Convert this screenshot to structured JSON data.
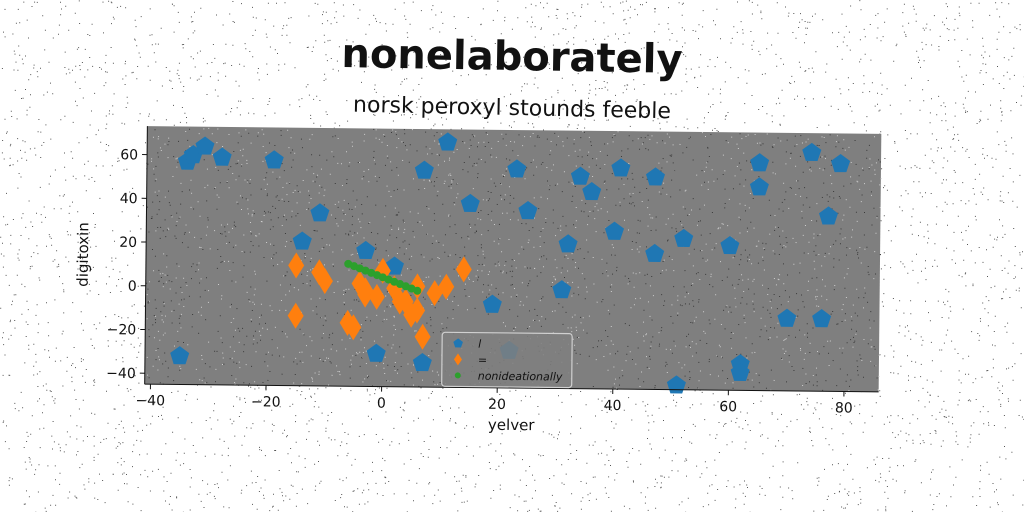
{
  "chart_data": {
    "type": "scatter",
    "title": "nonelaborately",
    "subtitle": "norsk peroxyl stounds feeble",
    "xlabel": "yelver",
    "ylabel": "digitoxin",
    "xlim": [
      -41,
      86
    ],
    "ylim": [
      -45,
      73
    ],
    "xticks": [
      -40,
      -20,
      0,
      20,
      40,
      60,
      80
    ],
    "yticks": [
      -40,
      -20,
      0,
      20,
      40,
      60
    ],
    "grid": false,
    "legend_position": "lower-center",
    "series": [
      {
        "name": "l",
        "marker": "pentagon",
        "color": "#1f77b4",
        "x": [
          -34,
          -33,
          -31,
          -28,
          -19,
          -11,
          -14,
          -3,
          2,
          -35,
          -1,
          7,
          7,
          11,
          15,
          23,
          25,
          19,
          22,
          31,
          32,
          34,
          36,
          41,
          40,
          47,
          47,
          52,
          51,
          60,
          65,
          65,
          74,
          77,
          79,
          70,
          76,
          62,
          62
        ],
        "y": [
          57,
          60,
          64,
          59,
          58,
          34,
          21,
          17,
          10,
          -32,
          -30,
          -34,
          54,
          67,
          39,
          55,
          36,
          -7,
          -28,
          0,
          21,
          52,
          45,
          56,
          27,
          52,
          17,
          24,
          -43,
          21,
          59,
          48,
          64,
          35,
          59,
          -12,
          -12,
          -33,
          -37
        ]
      },
      {
        "name": "=",
        "marker": "diamond",
        "color": "#ff7f0e",
        "x": [
          -15,
          -11,
          -10,
          -15,
          -6,
          -4,
          -3,
          -3,
          -1,
          0,
          2,
          3,
          4,
          5,
          6,
          7,
          9,
          11,
          14,
          6,
          -5
        ],
        "y": [
          10,
          7,
          3,
          -13,
          -16,
          2,
          -1,
          -3,
          -4,
          8,
          0,
          -6,
          -6,
          -12,
          1,
          -22,
          -2,
          1,
          9,
          -10,
          -18
        ]
      },
      {
        "name": "nonideationally",
        "marker": "point",
        "color": "#2ca02c",
        "x": [
          -6,
          -5,
          -4,
          -3,
          -2,
          -1,
          0,
          1,
          2,
          3,
          4,
          5,
          6
        ],
        "y": [
          11,
          10,
          9,
          8,
          7,
          6,
          5,
          4,
          3,
          2,
          1,
          0,
          -1
        ]
      }
    ]
  }
}
